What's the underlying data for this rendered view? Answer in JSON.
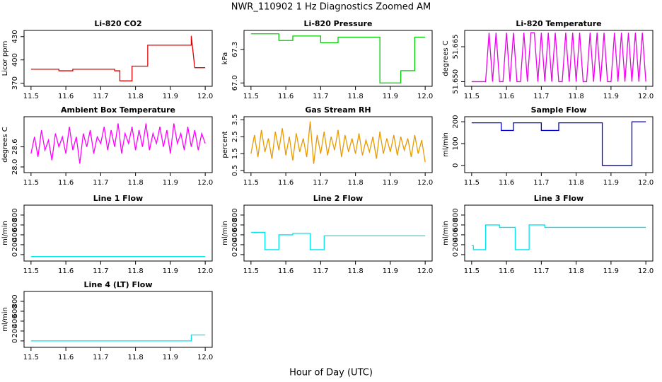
{
  "title": "NWR_110902  1 Hz Diagnostics Zoomed AM",
  "xlabel": "Hour of Day (UTC)",
  "chart_data": [
    {
      "type": "line",
      "title": "Li-820 CO2",
      "ylabel": "Licor ppm",
      "color": "#e00000",
      "x": [
        11.5,
        11.58,
        11.58,
        11.62,
        11.62,
        11.74,
        11.74,
        11.755,
        11.755,
        11.79,
        11.79,
        11.835,
        11.835,
        11.96,
        11.96,
        11.97,
        11.97,
        12
      ],
      "values": [
        388,
        388,
        386,
        386,
        388,
        388,
        386,
        386,
        373,
        373,
        392,
        392,
        419,
        419,
        431,
        390,
        390,
        390
      ],
      "xlim": [
        11.48,
        12.02
      ],
      "xticks": [
        11.5,
        11.6,
        11.7,
        11.8,
        11.9,
        {
          "value": 12,
          "label": "12.0"
        }
      ],
      "ylim": [
        366,
        438
      ],
      "yticks": [
        370,
        400,
        430
      ]
    },
    {
      "type": "line",
      "title": "Li-820 Pressure",
      "ylabel": "kPa",
      "color": "#00d000",
      "x": [
        11.5,
        11.58,
        11.58,
        11.62,
        11.62,
        11.7,
        11.7,
        11.75,
        11.75,
        11.87,
        11.87,
        11.93,
        11.93,
        11.97,
        11.97,
        12
      ],
      "values": [
        67.44,
        67.44,
        67.38,
        67.38,
        67.42,
        67.42,
        67.36,
        67.36,
        67.41,
        67.41,
        67.0,
        67.0,
        67.11,
        67.11,
        67.41,
        67.41
      ],
      "xlim": [
        11.48,
        12.02
      ],
      "xticks": [
        11.5,
        11.6,
        11.7,
        11.8,
        11.9,
        {
          "value": 12,
          "label": "12.0"
        }
      ],
      "ylim": [
        66.97,
        67.47
      ],
      "yticks": [
        {
          "value": 67.0,
          "label": "67.0"
        },
        67.3
      ]
    },
    {
      "type": "line",
      "title": "Li-820 Temperature",
      "ylabel": "degrees C",
      "color": "#ee00ee",
      "x": [
        11.5,
        11.51,
        11.52,
        11.53,
        11.54,
        11.55,
        11.56,
        11.57,
        11.58,
        11.59,
        11.6,
        11.61,
        11.62,
        11.63,
        11.64,
        11.65,
        11.66,
        11.67,
        11.68,
        11.69,
        11.7,
        11.71,
        11.72,
        11.73,
        11.74,
        11.75,
        11.76,
        11.77,
        11.78,
        11.79,
        11.8,
        11.81,
        11.82,
        11.83,
        11.84,
        11.85,
        11.86,
        11.87,
        11.88,
        11.89,
        11.9,
        11.91,
        11.92,
        11.93,
        11.94,
        11.95,
        11.96,
        11.97,
        11.98,
        11.99,
        12
      ],
      "values": [
        51.65,
        51.65,
        51.65,
        51.65,
        51.65,
        51.671,
        51.65,
        51.671,
        51.65,
        51.65,
        51.671,
        51.65,
        51.671,
        51.65,
        51.65,
        51.671,
        51.65,
        51.671,
        51.671,
        51.65,
        51.671,
        51.65,
        51.671,
        51.65,
        51.671,
        51.65,
        51.65,
        51.671,
        51.65,
        51.671,
        51.65,
        51.671,
        51.65,
        51.65,
        51.671,
        51.65,
        51.671,
        51.65,
        51.671,
        51.65,
        51.65,
        51.671,
        51.65,
        51.671,
        51.65,
        51.671,
        51.65,
        51.671,
        51.65,
        51.671,
        51.65
      ],
      "xlim": [
        11.48,
        12.02
      ],
      "xticks": [
        11.5,
        11.6,
        11.7,
        11.8,
        11.9,
        {
          "value": 12,
          "label": "12.0"
        }
      ],
      "ylim": [
        51.648,
        51.672
      ],
      "yticks": [
        {
          "value": 51.65,
          "label": "51.650"
        },
        51.665
      ]
    },
    {
      "type": "line",
      "title": "Ambient Box Temperature",
      "ylabel": "degrees C",
      "color": "#ff00ff",
      "x": [
        11.5,
        11.51,
        11.52,
        11.53,
        11.54,
        11.55,
        11.56,
        11.57,
        11.58,
        11.59,
        11.6,
        11.61,
        11.62,
        11.63,
        11.64,
        11.65,
        11.66,
        11.67,
        11.68,
        11.69,
        11.7,
        11.71,
        11.72,
        11.73,
        11.74,
        11.75,
        11.76,
        11.77,
        11.78,
        11.79,
        11.8,
        11.81,
        11.82,
        11.83,
        11.84,
        11.85,
        11.86,
        11.87,
        11.88,
        11.89,
        11.9,
        11.91,
        11.92,
        11.93,
        11.94,
        11.95,
        11.96,
        11.97,
        11.98,
        11.99,
        12
      ],
      "values": [
        28.4,
        28.9,
        28.3,
        29.1,
        28.5,
        28.8,
        28.2,
        29.0,
        28.6,
        28.9,
        28.4,
        29.2,
        28.5,
        28.9,
        28.1,
        29.0,
        28.6,
        29.1,
        28.4,
        28.9,
        28.7,
        29.2,
        28.5,
        29.1,
        28.6,
        29.3,
        28.4,
        29.0,
        28.7,
        29.2,
        28.5,
        29.1,
        28.6,
        29.3,
        28.5,
        29.0,
        28.7,
        29.2,
        28.6,
        29.1,
        28.4,
        29.3,
        28.7,
        29.0,
        28.5,
        29.2,
        28.6,
        29.1,
        28.5,
        29.0,
        28.7
      ],
      "xlim": [
        11.48,
        12.02
      ],
      "xticks": [
        11.5,
        11.6,
        11.7,
        11.8,
        11.9,
        {
          "value": 12,
          "label": "12.0"
        }
      ],
      "ylim": [
        27.83,
        29.5
      ],
      "yticks": [
        {
          "value": 28.0,
          "label": "28.0"
        },
        28.6
      ]
    },
    {
      "type": "line",
      "title": "Gas Stream RH",
      "ylabel": "percent",
      "color": "#e89a00",
      "x": [
        11.5,
        11.51,
        11.52,
        11.53,
        11.54,
        11.55,
        11.56,
        11.57,
        11.58,
        11.59,
        11.6,
        11.61,
        11.62,
        11.63,
        11.64,
        11.65,
        11.66,
        11.67,
        11.68,
        11.69,
        11.7,
        11.71,
        11.72,
        11.73,
        11.74,
        11.75,
        11.76,
        11.77,
        11.78,
        11.79,
        11.8,
        11.81,
        11.82,
        11.83,
        11.84,
        11.85,
        11.86,
        11.87,
        11.88,
        11.89,
        11.9,
        11.91,
        11.92,
        11.93,
        11.94,
        11.95,
        11.96,
        11.97,
        11.98,
        11.99,
        12
      ],
      "values": [
        1.5,
        2.6,
        1.3,
        2.9,
        1.6,
        2.4,
        1.2,
        2.8,
        1.7,
        3.0,
        1.4,
        2.5,
        1.1,
        2.7,
        1.6,
        2.4,
        1.3,
        3.4,
        0.9,
        2.6,
        1.5,
        2.8,
        1.4,
        2.5,
        1.7,
        2.9,
        1.3,
        2.6,
        1.6,
        2.4,
        1.5,
        2.7,
        1.4,
        2.3,
        1.6,
        2.5,
        1.2,
        2.8,
        1.5,
        2.4,
        1.6,
        2.6,
        1.4,
        2.5,
        1.7,
        2.4,
        1.3,
        2.6,
        1.5,
        2.3,
        1.0
      ],
      "xlim": [
        11.48,
        12.02
      ],
      "xticks": [
        11.5,
        11.6,
        11.7,
        11.8,
        11.9,
        {
          "value": 12,
          "label": "12.0"
        }
      ],
      "ylim": [
        0.38,
        3.68
      ],
      "yticks": [
        0.5,
        1.5,
        2.5,
        3.5
      ]
    },
    {
      "type": "line",
      "title": "Sample Flow",
      "ylabel": "ml/min",
      "color": "#0000cc",
      "x": [
        11.5,
        11.585,
        11.585,
        11.62,
        11.62,
        11.7,
        11.7,
        11.75,
        11.75,
        11.875,
        11.875,
        11.96,
        11.96,
        12
      ],
      "values": [
        195,
        195,
        160,
        160,
        195,
        195,
        160,
        160,
        195,
        195,
        0,
        0,
        200,
        200
      ],
      "xlim": [
        11.48,
        12.02
      ],
      "xticks": [
        11.5,
        11.6,
        11.7,
        11.8,
        11.9,
        {
          "value": 12,
          "label": "12.0"
        }
      ],
      "ylim": [
        -33,
        223
      ],
      "yticks": [
        0,
        100,
        200
      ]
    },
    {
      "type": "line",
      "title": "Line 1 Flow",
      "ylabel": "ml/min",
      "color": "#00e5ee",
      "x": [
        11.5,
        12
      ],
      "values": [
        -40,
        -40
      ],
      "xlim": [
        11.48,
        12.02
      ],
      "xticks": [
        11.5,
        11.6,
        11.7,
        11.8,
        11.9,
        {
          "value": 12,
          "label": "12.0"
        }
      ],
      "ylim": [
        -130,
        1000
      ],
      "yticks": [
        0,
        200,
        400,
        600,
        800
      ]
    },
    {
      "type": "line",
      "title": "Line 2 Flow",
      "ylabel": "ml/min",
      "color": "#00e5ee",
      "x": [
        11.5,
        11.54,
        11.54,
        11.58,
        11.58,
        11.62,
        11.62,
        11.67,
        11.67,
        11.71,
        11.71,
        12
      ],
      "values": [
        450,
        450,
        100,
        100,
        400,
        400,
        430,
        430,
        100,
        100,
        380,
        380
      ],
      "xlim": [
        11.48,
        12.02
      ],
      "xticks": [
        11.5,
        11.6,
        11.7,
        11.8,
        11.9,
        {
          "value": 12,
          "label": "12.0"
        }
      ],
      "ylim": [
        -130,
        1000
      ],
      "yticks": [
        0,
        200,
        400,
        600,
        800
      ]
    },
    {
      "type": "line",
      "title": "Line 3 Flow",
      "ylabel": "ml/min",
      "color": "#00e5ee",
      "x": [
        11.5,
        11.505,
        11.505,
        11.54,
        11.54,
        11.58,
        11.58,
        11.625,
        11.625,
        11.665,
        11.665,
        11.71,
        11.71,
        12
      ],
      "values": [
        180,
        180,
        100,
        100,
        600,
        600,
        550,
        550,
        100,
        100,
        600,
        600,
        550,
        550
      ],
      "xlim": [
        11.48,
        12.02
      ],
      "xticks": [
        11.5,
        11.6,
        11.7,
        11.8,
        11.9,
        {
          "value": 12,
          "label": "12.0"
        }
      ],
      "ylim": [
        -130,
        1000
      ],
      "yticks": [
        0,
        200,
        400,
        600,
        800
      ]
    },
    {
      "type": "line",
      "title": "Line 4 (LT) Flow",
      "ylabel": "ml/min",
      "color": "#00e5ee",
      "x": [
        11.5,
        11.96,
        11.96,
        12
      ],
      "values": [
        0,
        0,
        120,
        120
      ],
      "xlim": [
        11.48,
        12.02
      ],
      "xticks": [
        11.5,
        11.6,
        11.7,
        11.8,
        11.9,
        {
          "value": 12,
          "label": "12.0"
        }
      ],
      "ylim": [
        -130,
        1000
      ],
      "yticks": [
        0,
        200,
        400,
        600,
        800
      ]
    }
  ]
}
